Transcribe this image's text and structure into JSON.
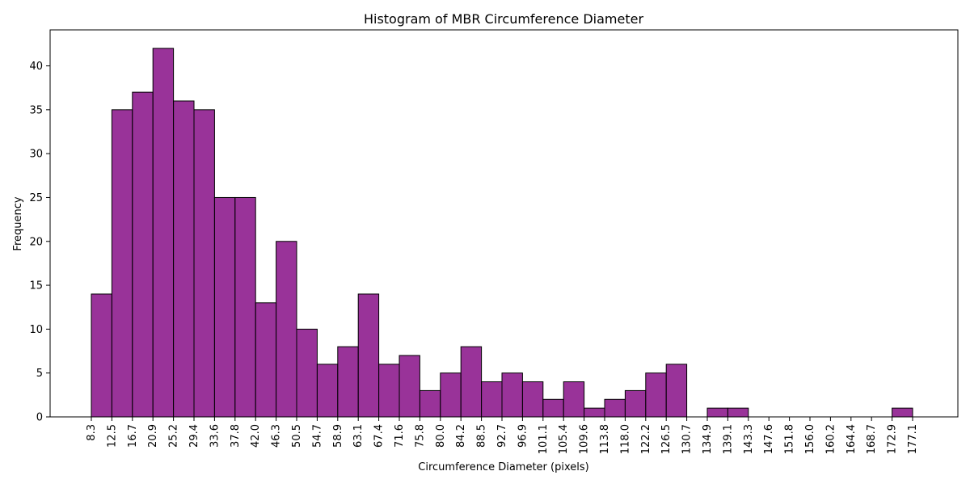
{
  "chart_data": {
    "type": "bar",
    "title": "Histogram of MBR Circumference Diameter",
    "xlabel": "Circumference Diameter (pixels)",
    "ylabel": "Frequency",
    "bin_edges": [
      8.3,
      12.5,
      16.7,
      20.9,
      25.2,
      29.4,
      33.6,
      37.8,
      42.0,
      46.3,
      50.5,
      54.7,
      58.9,
      63.1,
      67.4,
      71.6,
      75.8,
      80.0,
      84.2,
      88.5,
      92.7,
      96.9,
      101.1,
      105.4,
      109.6,
      113.8,
      118.0,
      122.2,
      126.5,
      130.7,
      134.9,
      139.1,
      143.3,
      147.6,
      151.8,
      156.0,
      160.2,
      164.4,
      168.7,
      172.9,
      177.1
    ],
    "values": [
      14,
      35,
      37,
      42,
      36,
      35,
      25,
      25,
      13,
      20,
      10,
      6,
      8,
      14,
      6,
      7,
      3,
      5,
      8,
      4,
      5,
      4,
      2,
      4,
      1,
      2,
      3,
      5,
      6,
      0,
      1,
      1,
      0,
      0,
      0,
      0,
      0,
      0,
      0,
      1
    ],
    "x_tick_labels": [
      "8.3",
      "12.5",
      "16.7",
      "20.9",
      "25.2",
      "29.4",
      "33.6",
      "37.8",
      "42.0",
      "46.3",
      "50.5",
      "54.7",
      "58.9",
      "63.1",
      "67.4",
      "71.6",
      "75.8",
      "80.0",
      "84.2",
      "88.5",
      "92.7",
      "96.9",
      "101.1",
      "105.4",
      "109.6",
      "113.8",
      "118.0",
      "122.2",
      "126.5",
      "130.7",
      "134.9",
      "139.1",
      "143.3",
      "147.6",
      "151.8",
      "156.0",
      "160.2",
      "164.4",
      "168.7",
      "172.9",
      "177.1"
    ],
    "y_ticks": [
      0,
      5,
      10,
      15,
      20,
      25,
      30,
      35,
      40
    ],
    "ylim": [
      0,
      44.1
    ],
    "grid": false,
    "bar_color": "#800080",
    "edge_color": "#000000"
  }
}
